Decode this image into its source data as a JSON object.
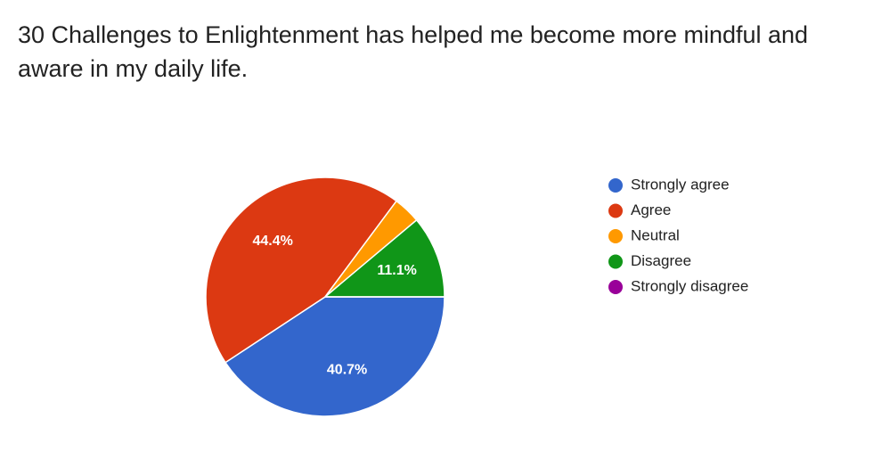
{
  "chart_data": {
    "type": "pie",
    "title": "30 Challenges to Enlightenment has helped me become more mindful and aware in my daily life.",
    "categories": [
      "Strongly agree",
      "Agree",
      "Neutral",
      "Disagree",
      "Strongly disagree"
    ],
    "values": [
      40.7,
      44.4,
      3.7,
      11.1,
      0
    ],
    "value_labels": [
      "40.7%",
      "44.4%",
      null,
      "11.1%",
      null
    ],
    "colors": [
      "#3366cc",
      "#dc3912",
      "#ff9900",
      "#109618",
      "#990099"
    ],
    "legend": "right"
  }
}
